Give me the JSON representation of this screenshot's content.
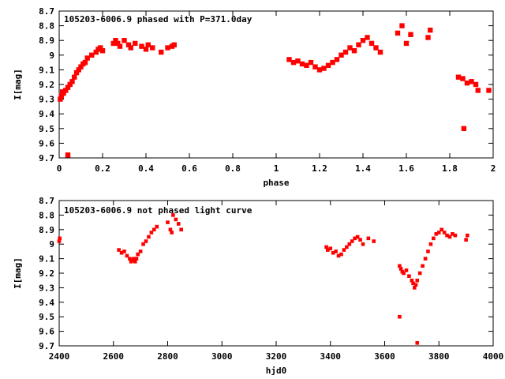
{
  "chart_data": [
    {
      "type": "scatter",
      "title": "105203-6006.9 phased with P=371.0day",
      "xlabel": "phase",
      "ylabel": "I[mag]",
      "xlim": [
        0,
        2
      ],
      "ylim": [
        9.7,
        8.7
      ],
      "y_inverted": true,
      "xticks": [
        0,
        0.2,
        0.4,
        0.6,
        0.8,
        1,
        1.2,
        1.4,
        1.6,
        1.8,
        2
      ],
      "xtick_labels": [
        "0",
        "0.2",
        "0.4",
        "0.6",
        "0.8",
        "1",
        "1.2",
        "1.4",
        "1.6",
        "1.8",
        "2"
      ],
      "yticks": [
        8.7,
        8.8,
        8.9,
        9.0,
        9.1,
        9.2,
        9.3,
        9.4,
        9.5,
        9.6,
        9.7
      ],
      "ytick_labels": [
        "8.7",
        "8.8",
        "8.9",
        "9",
        "9.1",
        "9.2",
        "9.3",
        "9.4",
        "9.5",
        "9.6",
        "9.7"
      ],
      "grid": false,
      "marker_color": "#ff0000",
      "series": [
        {
          "x": [
            0.005,
            0.01,
            0.015,
            0.02,
            0.03,
            0.04,
            0.05,
            0.06,
            0.07,
            0.08,
            0.09,
            0.1,
            0.11,
            0.12,
            0.13,
            0.15,
            0.17,
            0.18,
            0.19,
            0.2,
            0.25,
            0.26,
            0.27,
            0.28,
            0.3,
            0.32,
            0.33,
            0.35,
            0.38,
            0.4,
            0.41,
            0.43,
            0.47,
            0.5,
            0.52,
            0.53,
            0.04,
            1.06,
            1.08,
            1.1,
            1.12,
            1.14,
            1.16,
            1.18,
            1.2,
            1.22,
            1.24,
            1.26,
            1.28,
            1.3,
            1.32,
            1.34,
            1.36,
            1.38,
            1.4,
            1.42,
            1.44,
            1.46,
            1.48,
            1.56,
            1.58,
            1.6,
            1.62,
            1.7,
            1.71,
            1.84,
            1.86,
            1.88,
            1.9,
            1.92,
            1.93,
            1.98,
            1.865
          ],
          "y": [
            9.3,
            9.28,
            9.25,
            9.26,
            9.24,
            9.22,
            9.2,
            9.18,
            9.15,
            9.12,
            9.1,
            9.08,
            9.06,
            9.05,
            9.02,
            9.0,
            8.98,
            8.96,
            8.95,
            8.97,
            8.92,
            8.9,
            8.92,
            8.94,
            8.9,
            8.93,
            8.95,
            8.92,
            8.94,
            8.96,
            8.93,
            8.95,
            8.98,
            8.95,
            8.94,
            8.93,
            9.68,
            9.03,
            9.05,
            9.04,
            9.06,
            9.07,
            9.05,
            9.08,
            9.1,
            9.09,
            9.07,
            9.05,
            9.03,
            9.0,
            8.98,
            8.95,
            8.97,
            8.93,
            8.9,
            8.88,
            8.92,
            8.95,
            8.98,
            8.85,
            8.8,
            8.92,
            8.86,
            8.88,
            8.83,
            9.15,
            9.16,
            9.19,
            9.18,
            9.2,
            9.24,
            9.24,
            9.5
          ]
        }
      ]
    },
    {
      "type": "scatter",
      "title": "105203-6006.9 not phased light curve",
      "xlabel": "hjd0",
      "ylabel": "I[mag]",
      "xlim": [
        2400,
        4000
      ],
      "ylim": [
        9.7,
        8.7
      ],
      "y_inverted": true,
      "xticks": [
        2400,
        2600,
        2800,
        3000,
        3200,
        3400,
        3600,
        3800,
        4000
      ],
      "xtick_labels": [
        "2400",
        "2600",
        "2800",
        "3000",
        "3200",
        "3400",
        "3600",
        "3800",
        "4000"
      ],
      "yticks": [
        8.7,
        8.8,
        8.9,
        9.0,
        9.1,
        9.2,
        9.3,
        9.4,
        9.5,
        9.6,
        9.7
      ],
      "ytick_labels": [
        "8.7",
        "8.8",
        "8.9",
        "9",
        "9.1",
        "9.2",
        "9.3",
        "9.4",
        "9.5",
        "9.6",
        "9.7"
      ],
      "grid": false,
      "marker_color": "#ff0000",
      "series": [
        {
          "x": [
            2400,
            2402,
            2620,
            2630,
            2640,
            2650,
            2660,
            2665,
            2670,
            2675,
            2680,
            2685,
            2690,
            2700,
            2710,
            2720,
            2730,
            2740,
            2750,
            2760,
            2800,
            2810,
            2815,
            2820,
            2830,
            2840,
            2850,
            3385,
            3390,
            3400,
            3410,
            3420,
            3430,
            3440,
            3450,
            3460,
            3470,
            3480,
            3490,
            3500,
            3510,
            3520,
            3540,
            3560,
            3655,
            3660,
            3665,
            3670,
            3680,
            3690,
            3700,
            3705,
            3710,
            3715,
            3720,
            3730,
            3740,
            3750,
            3760,
            3770,
            3780,
            3790,
            3800,
            3810,
            3820,
            3830,
            3840,
            3850,
            3860,
            3900,
            3905,
            3720,
            3655
          ],
          "y": [
            8.98,
            8.96,
            9.04,
            9.06,
            9.05,
            9.08,
            9.1,
            9.12,
            9.11,
            9.1,
            9.12,
            9.1,
            9.07,
            9.05,
            9.0,
            8.98,
            8.95,
            8.92,
            8.9,
            8.88,
            8.85,
            8.9,
            8.92,
            8.8,
            8.83,
            8.86,
            8.9,
            9.02,
            9.04,
            9.03,
            9.06,
            9.05,
            9.08,
            9.07,
            9.04,
            9.02,
            9.0,
            8.98,
            8.96,
            8.95,
            8.97,
            9.0,
            8.96,
            8.98,
            9.15,
            9.17,
            9.19,
            9.2,
            9.18,
            9.22,
            9.25,
            9.27,
            9.3,
            9.28,
            9.25,
            9.2,
            9.15,
            9.1,
            9.05,
            9.0,
            8.96,
            8.93,
            8.92,
            8.9,
            8.92,
            8.94,
            8.95,
            8.93,
            8.94,
            8.97,
            8.94,
            9.68,
            9.5
          ]
        }
      ]
    }
  ]
}
